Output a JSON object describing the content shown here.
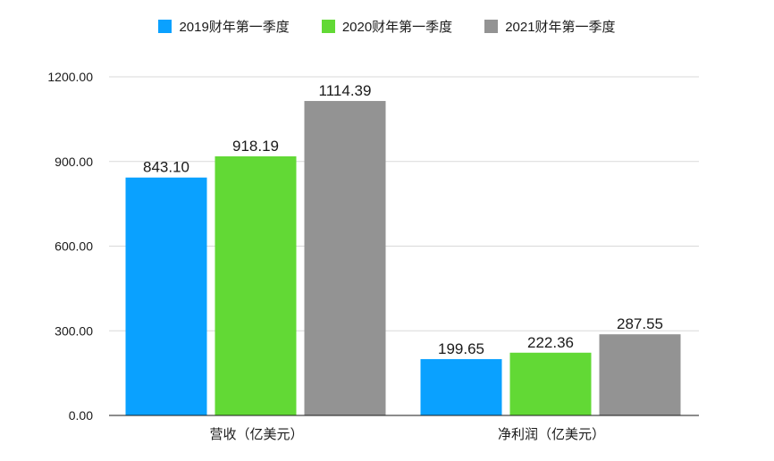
{
  "chart_data": {
    "type": "bar",
    "categories": [
      "营收（亿美元）",
      "净利润（亿美元）"
    ],
    "series": [
      {
        "name": "2019财年第一季度",
        "color": "#0aa1ff",
        "values": [
          843.1,
          199.65
        ]
      },
      {
        "name": "2020财年第一季度",
        "color": "#62d935",
        "values": [
          918.19,
          222.36
        ]
      },
      {
        "name": "2021财年第一季度",
        "color": "#939393",
        "values": [
          1114.39,
          287.55
        ]
      }
    ],
    "y_ticks": [
      "0.00",
      "300.00",
      "600.00",
      "900.00",
      "1200.00"
    ],
    "ylim": [
      0,
      1200
    ],
    "grid": true,
    "legend_position": "top-center",
    "value_format_decimals": 2
  }
}
